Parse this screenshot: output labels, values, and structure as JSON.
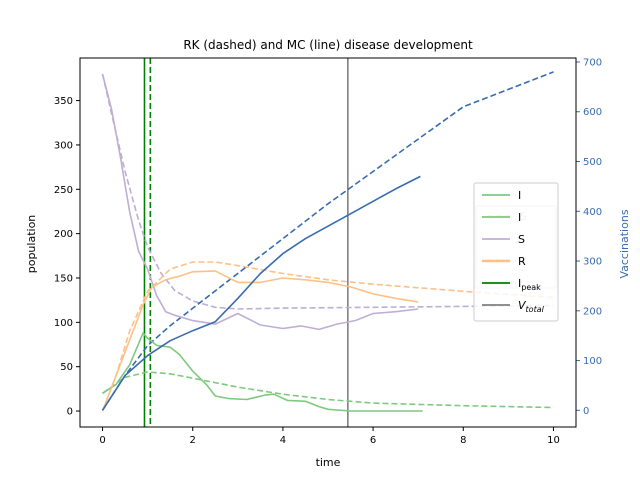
{
  "chart_data": {
    "type": "line",
    "title": "RK (dashed) and MC (line) disease development",
    "xlabel": "time",
    "ylabel": "population",
    "y2label": "Vaccinations",
    "xlim": [
      -0.5,
      10.5
    ],
    "ylim": [
      -18,
      398
    ],
    "y2lim": [
      -33.5,
      708
    ],
    "xticks": [
      0,
      2,
      4,
      6,
      8,
      10
    ],
    "yticks": [
      0,
      50,
      100,
      150,
      200,
      250,
      300,
      350
    ],
    "y2ticks": [
      0,
      100,
      200,
      300,
      400,
      500,
      600,
      700
    ],
    "colors": {
      "I": "#7fc97f",
      "S": "#beaed4",
      "R": "#fdc086",
      "V": "#386cb0",
      "I_peak": "#008000",
      "V_total": "#808080",
      "axis2": "#386cb0"
    },
    "series": [
      {
        "name": "I",
        "style": "dashed",
        "color": "#7fc97f",
        "axis": "left",
        "x": [
          0,
          0.5,
          1,
          1.5,
          2,
          3,
          4,
          5,
          6,
          8,
          10
        ],
        "y": [
          20,
          38,
          44,
          42,
          37,
          27,
          19,
          13,
          9,
          6,
          4
        ]
      },
      {
        "name": "S",
        "style": "dashed",
        "color": "#beaed4",
        "axis": "left",
        "x": [
          0,
          0.2,
          0.5,
          0.8,
          1,
          1.3,
          1.6,
          2,
          2.5,
          3,
          4,
          6,
          8,
          10
        ],
        "y": [
          380,
          335,
          270,
          215,
          185,
          155,
          136,
          124,
          117,
          115,
          116,
          117,
          118,
          119
        ]
      },
      {
        "name": "R",
        "style": "dashed",
        "color": "#fdc086",
        "axis": "left",
        "x": [
          0,
          0.3,
          0.6,
          1,
          1.5,
          2,
          2.5,
          3,
          4,
          5,
          6,
          8,
          10
        ],
        "y": [
          0,
          40,
          90,
          135,
          160,
          168,
          168,
          164,
          155,
          148,
          143,
          135,
          128
        ]
      },
      {
        "name": "V",
        "style": "dashed",
        "color": "#386cb0",
        "axis": "right",
        "x": [
          0,
          0.5,
          1,
          1.5,
          2,
          3,
          4,
          5,
          6,
          7,
          8,
          9,
          10
        ],
        "y": [
          0,
          70,
          130,
          170,
          205,
          275,
          345,
          415,
          480,
          545,
          610,
          645,
          680
        ]
      },
      {
        "name": "I",
        "style": "solid",
        "color": "#7fc97f",
        "axis": "left",
        "x": [
          0,
          0.3,
          0.6,
          0.9,
          1.0,
          1.2,
          1.5,
          1.7,
          2.0,
          2.3,
          2.5,
          2.8,
          3.2,
          3.6,
          3.8,
          4.1,
          4.5,
          4.8,
          5.0,
          5.5,
          6,
          7.1
        ],
        "y": [
          20,
          30,
          52,
          88,
          82,
          74,
          72,
          64,
          45,
          30,
          17,
          14,
          13,
          18,
          19,
          12,
          11,
          5,
          2,
          0,
          0,
          0
        ]
      },
      {
        "name": "S",
        "style": "solid",
        "color": "#beaed4",
        "axis": "left",
        "x": [
          0,
          0.2,
          0.4,
          0.6,
          0.8,
          1.0,
          1.2,
          1.4,
          1.6,
          2.0,
          2.5,
          3.0,
          3.5,
          4.0,
          4.4,
          4.8,
          5.2,
          5.6,
          6.0,
          6.5,
          7.0
        ],
        "y": [
          380,
          340,
          285,
          225,
          180,
          160,
          130,
          112,
          108,
          102,
          98,
          110,
          97,
          93,
          96,
          92,
          98,
          102,
          110,
          112,
          115
        ]
      },
      {
        "name": "R",
        "style": "solid",
        "color": "#fdc086",
        "axis": "left",
        "x": [
          0,
          0.3,
          0.6,
          0.9,
          1.1,
          1.4,
          1.7,
          2.0,
          2.5,
          3.0,
          3.5,
          4.0,
          4.5,
          5.0,
          5.5,
          6.0,
          6.5,
          7.0
        ],
        "y": [
          0,
          40,
          80,
          120,
          140,
          148,
          152,
          157,
          158,
          145,
          145,
          150,
          148,
          145,
          140,
          132,
          127,
          123
        ]
      },
      {
        "name": "V",
        "style": "solid",
        "color": "#386cb0",
        "axis": "right",
        "x": [
          0,
          0.5,
          1,
          1.5,
          2,
          2.5,
          3,
          3.5,
          4,
          4.5,
          5,
          5.5,
          6,
          6.5,
          7.05
        ],
        "y": [
          0,
          70,
          110,
          140,
          160,
          178,
          225,
          275,
          315,
          345,
          370,
          395,
          420,
          445,
          470
        ]
      }
    ],
    "vlines": [
      {
        "name": "I_peak",
        "x": 0.93,
        "style": "solid",
        "color": "#008000"
      },
      {
        "name": "I_peak",
        "x": 1.06,
        "style": "dashed",
        "color": "#008000"
      },
      {
        "name": "V_total",
        "x": 5.44,
        "style": "solid",
        "color": "#808080"
      }
    ],
    "legend": {
      "placement": "center-right",
      "ghost_entries": [
        {
          "label": "S",
          "color": "#beaed4",
          "style": "dashed"
        },
        {
          "label": "R",
          "color": "#fdc086",
          "style": "dashed"
        }
      ],
      "entries": [
        {
          "label": "I",
          "color": "#7fc97f",
          "style": "solid",
          "key": "I"
        },
        {
          "label": "I",
          "color": "#7fc97f",
          "style": "solid",
          "key": "I2"
        },
        {
          "label": "S",
          "color": "#beaed4",
          "style": "solid",
          "key": "S"
        },
        {
          "label": "R",
          "color": "#fdc086",
          "style": "solid",
          "key": "R"
        },
        {
          "label": "I",
          "sub": "peak",
          "color": "#008000",
          "style": "solid",
          "key": "I_peak"
        },
        {
          "label": "V",
          "sub": "total",
          "italic": true,
          "color": "#808080",
          "style": "solid",
          "key": "V_total"
        }
      ]
    }
  }
}
